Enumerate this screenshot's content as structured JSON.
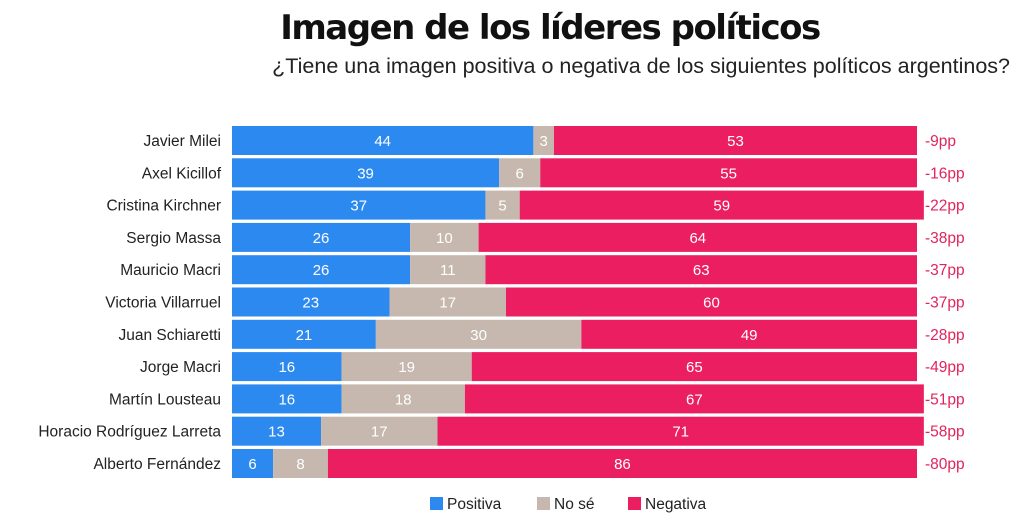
{
  "chart_data": {
    "type": "bar",
    "stacked": true,
    "orientation": "horizontal",
    "title": "Imagen de los líderes políticos",
    "subtitle": "¿Tiene una imagen positiva o negativa de los siguientes políticos argentinos?",
    "categories": [
      "Javier Milei",
      "Axel Kicillof",
      "Cristina Kirchner",
      "Sergio Massa",
      "Mauricio Macri",
      "Victoria Villarruel",
      "Juan Schiaretti",
      "Jorge Macri",
      "Martín Lousteau",
      "Horacio Rodríguez Larreta",
      "Alberto Fernández"
    ],
    "series": [
      {
        "name": "Positiva",
        "color": "#2B89F0",
        "values": [
          44,
          39,
          37,
          26,
          26,
          23,
          21,
          16,
          16,
          13,
          6
        ]
      },
      {
        "name": "No sé",
        "color": "#C6B8AE",
        "values": [
          3,
          6,
          5,
          10,
          11,
          17,
          30,
          19,
          18,
          17,
          8
        ]
      },
      {
        "name": "Negativa",
        "color": "#EA1E60",
        "values": [
          53,
          55,
          59,
          64,
          63,
          60,
          49,
          65,
          67,
          71,
          86
        ]
      }
    ],
    "net_labels": [
      "-9pp",
      "-16pp",
      "-22pp",
      "-38pp",
      "-37pp",
      "-37pp",
      "-28pp",
      "-49pp",
      "-51pp",
      "-58pp",
      "-80pp"
    ],
    "net_label_color": "#E0245E",
    "legend_position": "bottom"
  }
}
